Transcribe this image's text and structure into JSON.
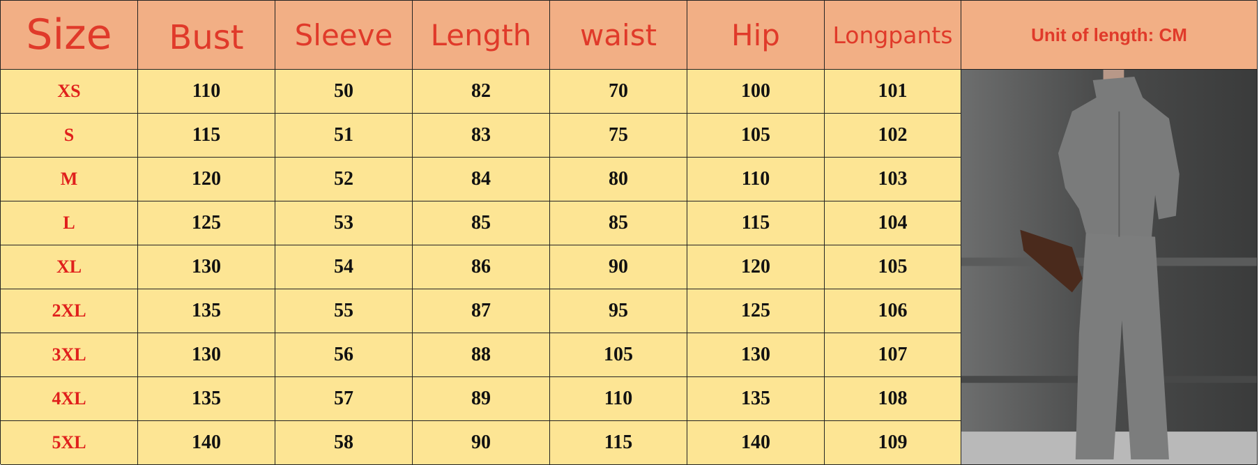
{
  "header": {
    "size": "Size",
    "columns": [
      "Bust",
      "Sleeve",
      "Length",
      "waist",
      "Hip",
      "Longpants"
    ],
    "unit": "Unit of length: CM"
  },
  "rows": [
    {
      "size": "XS",
      "values": [
        "110",
        "50",
        "82",
        "70",
        "100",
        "101"
      ]
    },
    {
      "size": "S",
      "values": [
        "115",
        "51",
        "83",
        "75",
        "105",
        "102"
      ]
    },
    {
      "size": "M",
      "values": [
        "120",
        "52",
        "84",
        "80",
        "110",
        "103"
      ]
    },
    {
      "size": "L",
      "values": [
        "125",
        "53",
        "85",
        "85",
        "115",
        "104"
      ]
    },
    {
      "size": "XL",
      "values": [
        "130",
        "54",
        "86",
        "90",
        "120",
        "105"
      ]
    },
    {
      "size": "2XL",
      "values": [
        "135",
        "55",
        "87",
        "95",
        "125",
        "106"
      ]
    },
    {
      "size": "3XL",
      "values": [
        "130",
        "56",
        "88",
        "105",
        "130",
        "107"
      ]
    },
    {
      "size": "4XL",
      "values": [
        "135",
        "57",
        "89",
        "110",
        "135",
        "108"
      ]
    },
    {
      "size": "5XL",
      "values": [
        "140",
        "58",
        "90",
        "115",
        "140",
        "109"
      ]
    }
  ],
  "colors": {
    "header_bg": "#f2af85",
    "header_text": "#e03a2a",
    "body_bg": "#fde594",
    "size_text": "#e0201c"
  },
  "photo": {
    "icon": "model-photo-grey-knit-cardigan-and-wide-pants"
  }
}
